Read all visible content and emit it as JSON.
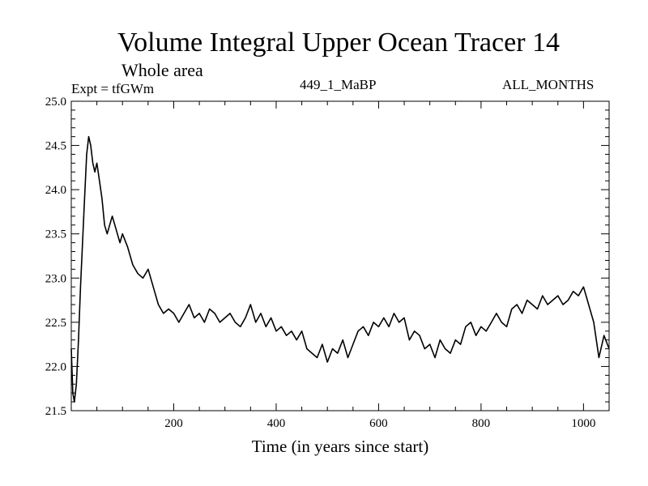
{
  "header": {
    "title": "Volume Integral Upper Ocean Tracer 14",
    "subtitle": "Whole area",
    "expt": "Expt = tfGWm",
    "run": "449_1_MaBP",
    "months": "ALL_MONTHS"
  },
  "chart_data": {
    "type": "line",
    "title": "Volume Integral Upper Ocean Tracer 14",
    "subtitle": "Whole area",
    "xlabel": "Time (in years since start)",
    "ylabel": "",
    "xlim": [
      0,
      1050
    ],
    "ylim": [
      21.5,
      25.0
    ],
    "x_ticks": [
      200,
      400,
      600,
      800,
      1000
    ],
    "x_tick_labels": [
      "200",
      "400",
      "600",
      "800",
      "1000"
    ],
    "y_ticks": [
      21.5,
      22.0,
      22.5,
      23.0,
      23.5,
      24.0,
      24.5,
      25.0
    ],
    "y_tick_labels": [
      "21.5",
      "22.0",
      "22.5",
      "23.0",
      "23.5",
      "24.0",
      "24.5",
      "25.0"
    ],
    "grid": false,
    "line_color": "#000000",
    "series": [
      {
        "x": [
          0,
          3,
          6,
          10,
          14,
          18,
          22,
          26,
          30,
          34,
          38,
          42,
          46,
          50,
          55,
          60,
          65,
          70,
          75,
          80,
          85,
          90,
          95,
          100,
          110,
          120,
          130,
          140,
          150,
          160,
          170,
          180,
          190,
          200,
          210,
          220,
          230,
          240,
          250,
          260,
          270,
          280,
          290,
          300,
          310,
          320,
          330,
          340,
          350,
          360,
          370,
          380,
          390,
          400,
          410,
          420,
          430,
          440,
          450,
          460,
          470,
          480,
          490,
          500,
          510,
          520,
          530,
          540,
          550,
          560,
          570,
          580,
          590,
          600,
          610,
          620,
          630,
          640,
          650,
          660,
          670,
          680,
          690,
          700,
          710,
          720,
          730,
          740,
          750,
          760,
          770,
          780,
          790,
          800,
          810,
          820,
          830,
          840,
          850,
          860,
          870,
          880,
          890,
          900,
          910,
          920,
          930,
          940,
          950,
          960,
          970,
          980,
          990,
          1000,
          1010,
          1020,
          1030,
          1040,
          1050
        ],
        "y": [
          22.2,
          21.7,
          21.6,
          21.8,
          22.3,
          22.9,
          23.4,
          23.9,
          24.4,
          24.6,
          24.5,
          24.3,
          24.2,
          24.3,
          24.1,
          23.9,
          23.6,
          23.5,
          23.6,
          23.7,
          23.6,
          23.5,
          23.4,
          23.5,
          23.35,
          23.15,
          23.05,
          23.0,
          23.1,
          22.9,
          22.7,
          22.6,
          22.65,
          22.6,
          22.5,
          22.6,
          22.7,
          22.55,
          22.6,
          22.5,
          22.65,
          22.6,
          22.5,
          22.55,
          22.6,
          22.5,
          22.45,
          22.55,
          22.7,
          22.5,
          22.6,
          22.45,
          22.55,
          22.4,
          22.45,
          22.35,
          22.4,
          22.3,
          22.4,
          22.2,
          22.15,
          22.1,
          22.25,
          22.05,
          22.2,
          22.15,
          22.3,
          22.1,
          22.25,
          22.4,
          22.45,
          22.35,
          22.5,
          22.45,
          22.55,
          22.45,
          22.6,
          22.5,
          22.55,
          22.3,
          22.4,
          22.35,
          22.2,
          22.25,
          22.1,
          22.3,
          22.2,
          22.15,
          22.3,
          22.25,
          22.45,
          22.5,
          22.35,
          22.45,
          22.4,
          22.5,
          22.6,
          22.5,
          22.45,
          22.65,
          22.7,
          22.6,
          22.75,
          22.7,
          22.65,
          22.8,
          22.7,
          22.75,
          22.8,
          22.7,
          22.75,
          22.85,
          22.8,
          22.9,
          22.7,
          22.5,
          22.1,
          22.35,
          22.2
        ]
      }
    ]
  }
}
